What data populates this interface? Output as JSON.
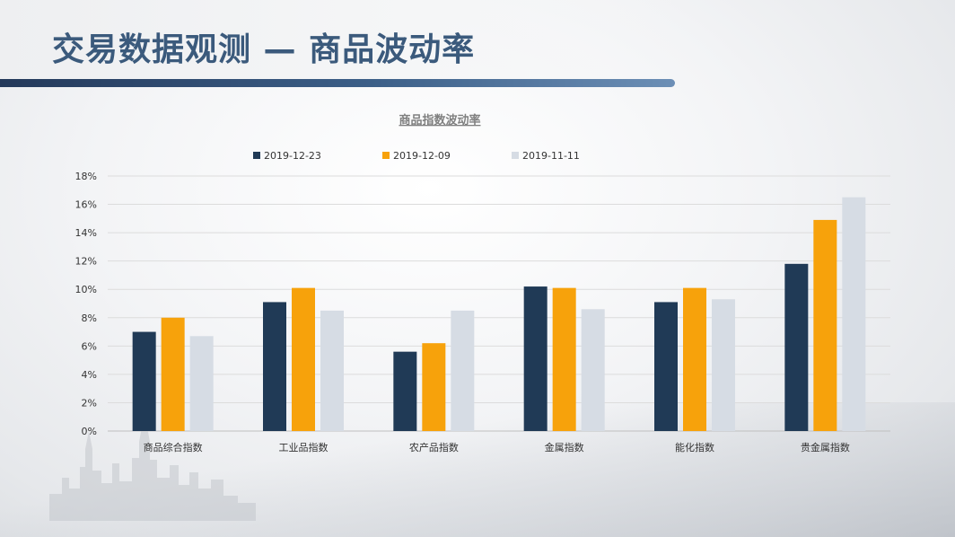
{
  "page": {
    "title": "交易数据观测 — 商品波动率"
  },
  "colors": {
    "title": "#3b5a7c",
    "series": [
      "#203a56",
      "#f7a20b",
      "#d6dce4"
    ]
  },
  "chart_data": {
    "type": "bar",
    "title": "商品指数波动率",
    "categories": [
      "商品综合指数",
      "工业品指数",
      "农产品指数",
      "金属指数",
      "能化指数",
      "贵金属指数"
    ],
    "series": [
      {
        "name": "2019-12-23",
        "values": [
          7.0,
          9.1,
          5.6,
          10.2,
          9.1,
          11.8
        ]
      },
      {
        "name": "2019-12-09",
        "values": [
          8.0,
          10.1,
          6.2,
          10.1,
          10.1,
          14.9
        ]
      },
      {
        "name": "2019-11-11",
        "values": [
          6.7,
          8.5,
          8.5,
          8.6,
          9.3,
          16.5
        ]
      }
    ],
    "yticks": [
      "0%",
      "2%",
      "4%",
      "6%",
      "8%",
      "10%",
      "12%",
      "14%",
      "16%",
      "18%"
    ],
    "ylim": [
      0,
      18
    ],
    "yunit": "%",
    "grid": true,
    "legend_position": "top"
  }
}
